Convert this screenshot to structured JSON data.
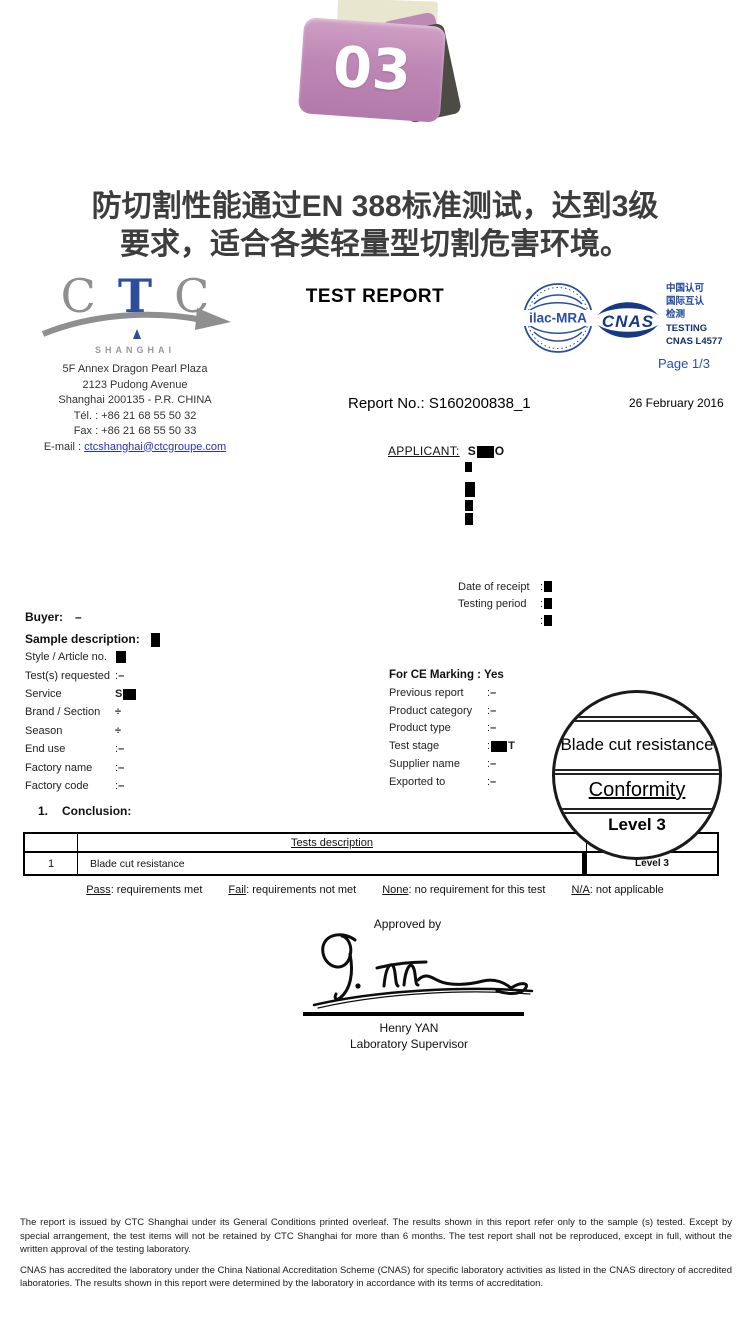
{
  "folder_badge": {
    "number": "03",
    "folder_color": "#bd87b5",
    "paper_color": "#e9e6cf"
  },
  "headline": {
    "line1": "防切割性能通过EN 388标准测试，达到3级",
    "line2": "要求，适合各类轻量型切割危害环境。"
  },
  "letterhead": {
    "title": "TEST REPORT",
    "ctc": {
      "letters": [
        "C",
        "T",
        "C"
      ],
      "city": "SHANGHAI",
      "address": [
        "5F Annex Dragon Pearl Plaza",
        "2123 Pudong Avenue",
        "Shanghai 200135 - P.R. CHINA",
        "Tél. : +86 21 68 55 50 32",
        "Fax : +86 21 68 55 50 33"
      ],
      "email_label": "E-mail : ",
      "email": "ctcshanghai@ctcgroupe.com"
    },
    "ilac_text": "ilac-MRA",
    "cnas_text": "CNAS",
    "accreditation_lines": [
      "中国认可",
      "国际互认",
      "检测",
      "TESTING",
      "CNAS L4577"
    ],
    "page_indicator": "Page 1/3"
  },
  "report": {
    "number_line": "Report No.: S160200838_1",
    "date": "26 February 2016"
  },
  "applicant": {
    "label": "APPLICANT:",
    "value_segments": [
      {
        "k": "t",
        "s": "S"
      },
      {
        "k": "x",
        "w": 17,
        "h": 12
      },
      {
        "k": "t",
        "s": "O"
      }
    ],
    "redacted_lines": [
      {
        "mt": 0,
        "w": 7,
        "h": 10
      },
      {
        "mt": 10,
        "w": 10,
        "h": 15
      },
      {
        "mt": 3,
        "w": 8,
        "h": 11
      },
      {
        "mt": 2,
        "w": 8,
        "h": 12
      }
    ]
  },
  "receipt": {
    "rows": [
      {
        "label": "Date of receipt",
        "segs": [
          {
            "k": "t",
            "s": ":"
          },
          {
            "k": "x",
            "w": 8,
            "h": 11
          }
        ]
      },
      {
        "label": "Testing period",
        "segs": [
          {
            "k": "t",
            "s": ":"
          },
          {
            "k": "x",
            "w": 8,
            "h": 11
          }
        ]
      },
      {
        "label": "",
        "segs": [
          {
            "k": "t",
            "s": ":"
          },
          {
            "k": "x",
            "w": 8,
            "h": 11
          }
        ]
      }
    ]
  },
  "info_left": {
    "buyer_label": "Buyer:",
    "buyer_value": "–",
    "sample_label": "Sample description:",
    "sample_seg": {
      "k": "x",
      "w": 9,
      "h": 14
    },
    "rows": [
      {
        "label": "Style / Article no.",
        "segs": [
          {
            "k": "x",
            "w": 10,
            "h": 12
          }
        ]
      },
      {
        "label": "Test(s) requested",
        "segs": [
          {
            "k": "t",
            "s": ":"
          },
          {
            "k": "b",
            "s": "–"
          }
        ]
      },
      {
        "label": "Service",
        "segs": [
          {
            "k": "b",
            "s": "S"
          },
          {
            "k": "x",
            "w": 13,
            "h": 11
          }
        ]
      },
      {
        "label": "Brand / Section",
        "segs": [
          {
            "k": "b",
            "s": "÷"
          }
        ]
      },
      {
        "label": "Season",
        "segs": [
          {
            "k": "b",
            "s": "÷"
          }
        ]
      },
      {
        "label": "End use",
        "segs": [
          {
            "k": "t",
            "s": ":"
          },
          {
            "k": "b",
            "s": "–"
          }
        ]
      },
      {
        "label": "Factory name",
        "segs": [
          {
            "k": "t",
            "s": ":"
          },
          {
            "k": "b",
            "s": "–"
          }
        ]
      },
      {
        "label": "Factory code",
        "segs": [
          {
            "k": "t",
            "s": ":"
          },
          {
            "k": "b",
            "s": "–"
          }
        ]
      }
    ]
  },
  "info_right": {
    "ce_label": "For CE Marking : Yes",
    "rows": [
      {
        "label": "Previous report",
        "segs": [
          {
            "k": "t",
            "s": ":"
          },
          {
            "k": "b",
            "s": "–"
          }
        ]
      },
      {
        "label": "Product category",
        "segs": [
          {
            "k": "t",
            "s": ":"
          },
          {
            "k": "b",
            "s": "–"
          }
        ]
      },
      {
        "label": "Product type",
        "segs": [
          {
            "k": "t",
            "s": ":"
          },
          {
            "k": "b",
            "s": "–"
          }
        ]
      },
      {
        "label": "Test stage",
        "segs": [
          {
            "k": "t",
            "s": ":"
          },
          {
            "k": "x",
            "w": 16,
            "h": 11
          },
          {
            "k": "b",
            "s": "T"
          }
        ]
      },
      {
        "label": "Supplier name",
        "segs": [
          {
            "k": "t",
            "s": ":"
          },
          {
            "k": "b",
            "s": "–"
          }
        ]
      },
      {
        "label": "Exported to",
        "segs": [
          {
            "k": "t",
            "s": ":"
          },
          {
            "k": "b",
            "s": "–"
          }
        ]
      }
    ]
  },
  "magnifier": {
    "line1": "Blade cut resistance",
    "line2": "Conformity",
    "line3": "Level 3"
  },
  "conclusion": {
    "index": "1.",
    "title": "Conclusion:"
  },
  "table": {
    "header": [
      "",
      "Tests description",
      ""
    ],
    "rows": [
      [
        "1",
        "Blade cut resistance",
        "Level 3"
      ]
    ]
  },
  "legend": {
    "items": [
      {
        "key": "Pass",
        "desc": ": requirements met"
      },
      {
        "key": "Fail",
        "desc": ": requirements not met"
      },
      {
        "key": "None",
        "desc": ": no requirement for this test"
      },
      {
        "key": "N/A",
        "desc": ": not applicable"
      }
    ]
  },
  "approval": {
    "approved_by": "Approved by",
    "name": "Henry YAN",
    "title": "Laboratory Supervisor"
  },
  "footer": {
    "paragraphs": [
      "The report is issued by CTC Shanghai under its General Conditions printed overleaf. The results shown in this report refer only to the sample (s) tested. Except by special arrangement, the test items will not be retained by CTC Shanghai for more than 6 months. The test report shall not be reproduced, except in full, without the written approval of the testing laboratory.",
      "CNAS has accredited the laboratory under the China National Accreditation Scheme (CNAS) for specific laboratory activities as listed in the CNAS directory of accredited laboratories. The results shown in this report were determined by the laboratory in accordance with its terms of accreditation."
    ]
  },
  "colors": {
    "blue": "#2b4fa0",
    "navy": "#16397f",
    "folder_pink": "#bd87b5",
    "link_blue": "#2233bb"
  }
}
